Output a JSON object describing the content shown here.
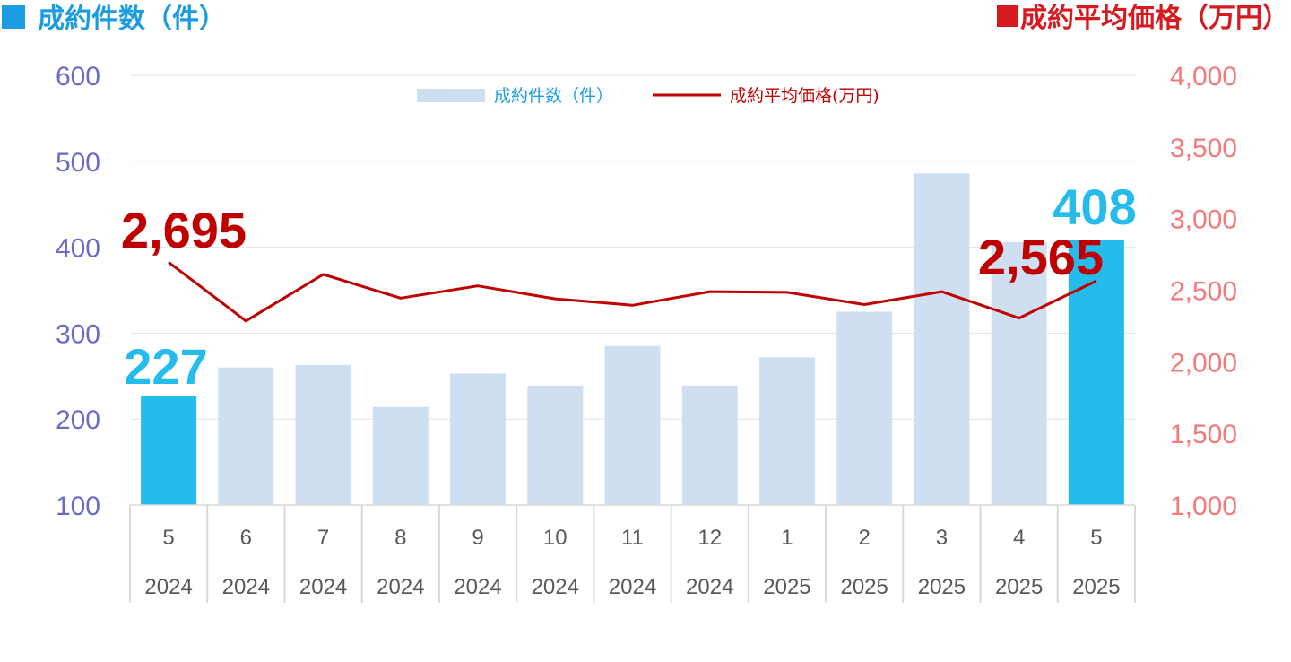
{
  "chart_data": {
    "type": "bar",
    "left_axis_title": "成約件数（件）",
    "right_axis_title": "成約平均価格（万円）",
    "categories": [
      {
        "month": "5",
        "year": "2024"
      },
      {
        "month": "6",
        "year": "2024"
      },
      {
        "month": "7",
        "year": "2024"
      },
      {
        "month": "8",
        "year": "2024"
      },
      {
        "month": "9",
        "year": "2024"
      },
      {
        "month": "10",
        "year": "2024"
      },
      {
        "month": "11",
        "year": "2024"
      },
      {
        "month": "12",
        "year": "2024"
      },
      {
        "month": "1",
        "year": "2025"
      },
      {
        "month": "2",
        "year": "2025"
      },
      {
        "month": "3",
        "year": "2025"
      },
      {
        "month": "4",
        "year": "2025"
      },
      {
        "month": "5",
        "year": "2025"
      }
    ],
    "series": [
      {
        "name": "成約件数（件）",
        "type": "bar",
        "axis": "left",
        "values": [
          227,
          260,
          263,
          214,
          253,
          239,
          285,
          239,
          272,
          325,
          486,
          406,
          408
        ],
        "color": "#cfdff2",
        "highlight_color": "#25bcec",
        "highlight_indices": [
          0,
          12
        ]
      },
      {
        "name": "成約平均価格(万円)",
        "type": "line",
        "axis": "right",
        "values": [
          2695,
          2285,
          2610,
          2445,
          2530,
          2440,
          2395,
          2490,
          2485,
          2400,
          2490,
          2305,
          2565
        ],
        "color": "#c00000"
      }
    ],
    "left_axis": {
      "min": 100,
      "max": 600,
      "ticks": [
        "100",
        "200",
        "300",
        "400",
        "500",
        "600"
      ],
      "color": "#6a6ac8"
    },
    "right_axis": {
      "min": 1000,
      "max": 4000,
      "ticks": [
        "1,000",
        "1,500",
        "2,000",
        "2,500",
        "3,000",
        "3,500",
        "4,000"
      ],
      "color": "#f47a7a"
    },
    "data_labels": [
      {
        "series": 0,
        "index": 0,
        "text": "227",
        "color": "#25bcec"
      },
      {
        "series": 0,
        "index": 12,
        "text": "408",
        "color": "#25bcec"
      },
      {
        "series": 1,
        "index": 0,
        "text": "2,695",
        "color": "#c00000"
      },
      {
        "series": 1,
        "index": 12,
        "text": "2,565",
        "color": "#c00000"
      }
    ],
    "grid": true,
    "legend_position": "top"
  },
  "colors": {
    "left_header": "#1b9ce0",
    "right_header": "#d71920"
  }
}
